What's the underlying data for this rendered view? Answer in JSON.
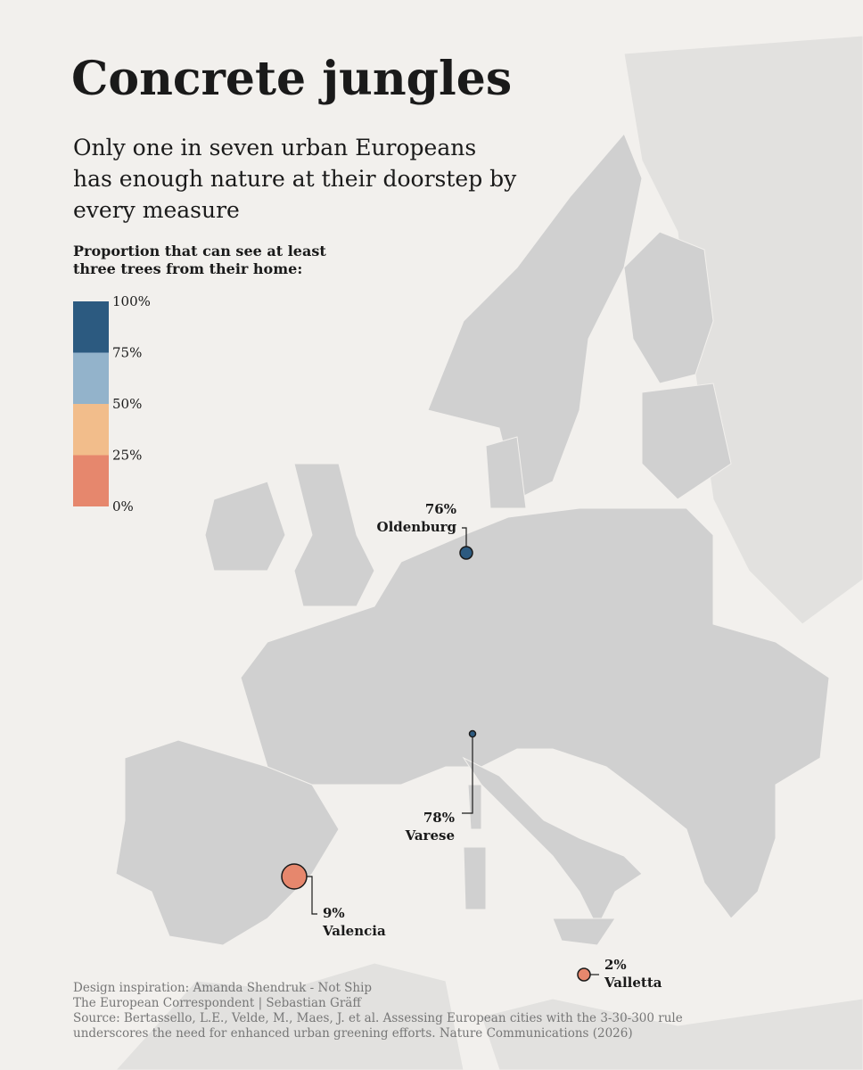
{
  "header": {
    "title": "Concrete jungles",
    "subtitle": "Only one in seven urban Europeans has enough nature at their doorstep by every measure"
  },
  "legend": {
    "title": "Proportion that can see at least three trees from their home:",
    "ticks": [
      {
        "value": 100,
        "label": "100%"
      },
      {
        "value": 75,
        "label": "75%"
      },
      {
        "value": 50,
        "label": "50%"
      },
      {
        "value": 25,
        "label": "25%"
      },
      {
        "value": 0,
        "label": "0%"
      }
    ],
    "colors": [
      "#2c5a80",
      "#93b3cb",
      "#f2bd8b",
      "#e6876d"
    ]
  },
  "cities": [
    {
      "name": "Oldenburg",
      "value": 76,
      "value_label": "76%"
    },
    {
      "name": "Varese",
      "value": 78,
      "value_label": "78%"
    },
    {
      "name": "Valencia",
      "value": 9,
      "value_label": "9%"
    },
    {
      "name": "Valletta",
      "value": 2,
      "value_label": "2%"
    }
  ],
  "credits": [
    "Design inspiration: Amanda Shendruk - Not Ship",
    "The European Correspondent | Sebastian Gräff",
    "Source: Bertassello, L.E., Velde, M., Maes, J. et al. Assessing European cities with the 3-30-300 rule underscores the need for enhanced urban greening efforts. Nature Communications (2026)"
  ]
}
